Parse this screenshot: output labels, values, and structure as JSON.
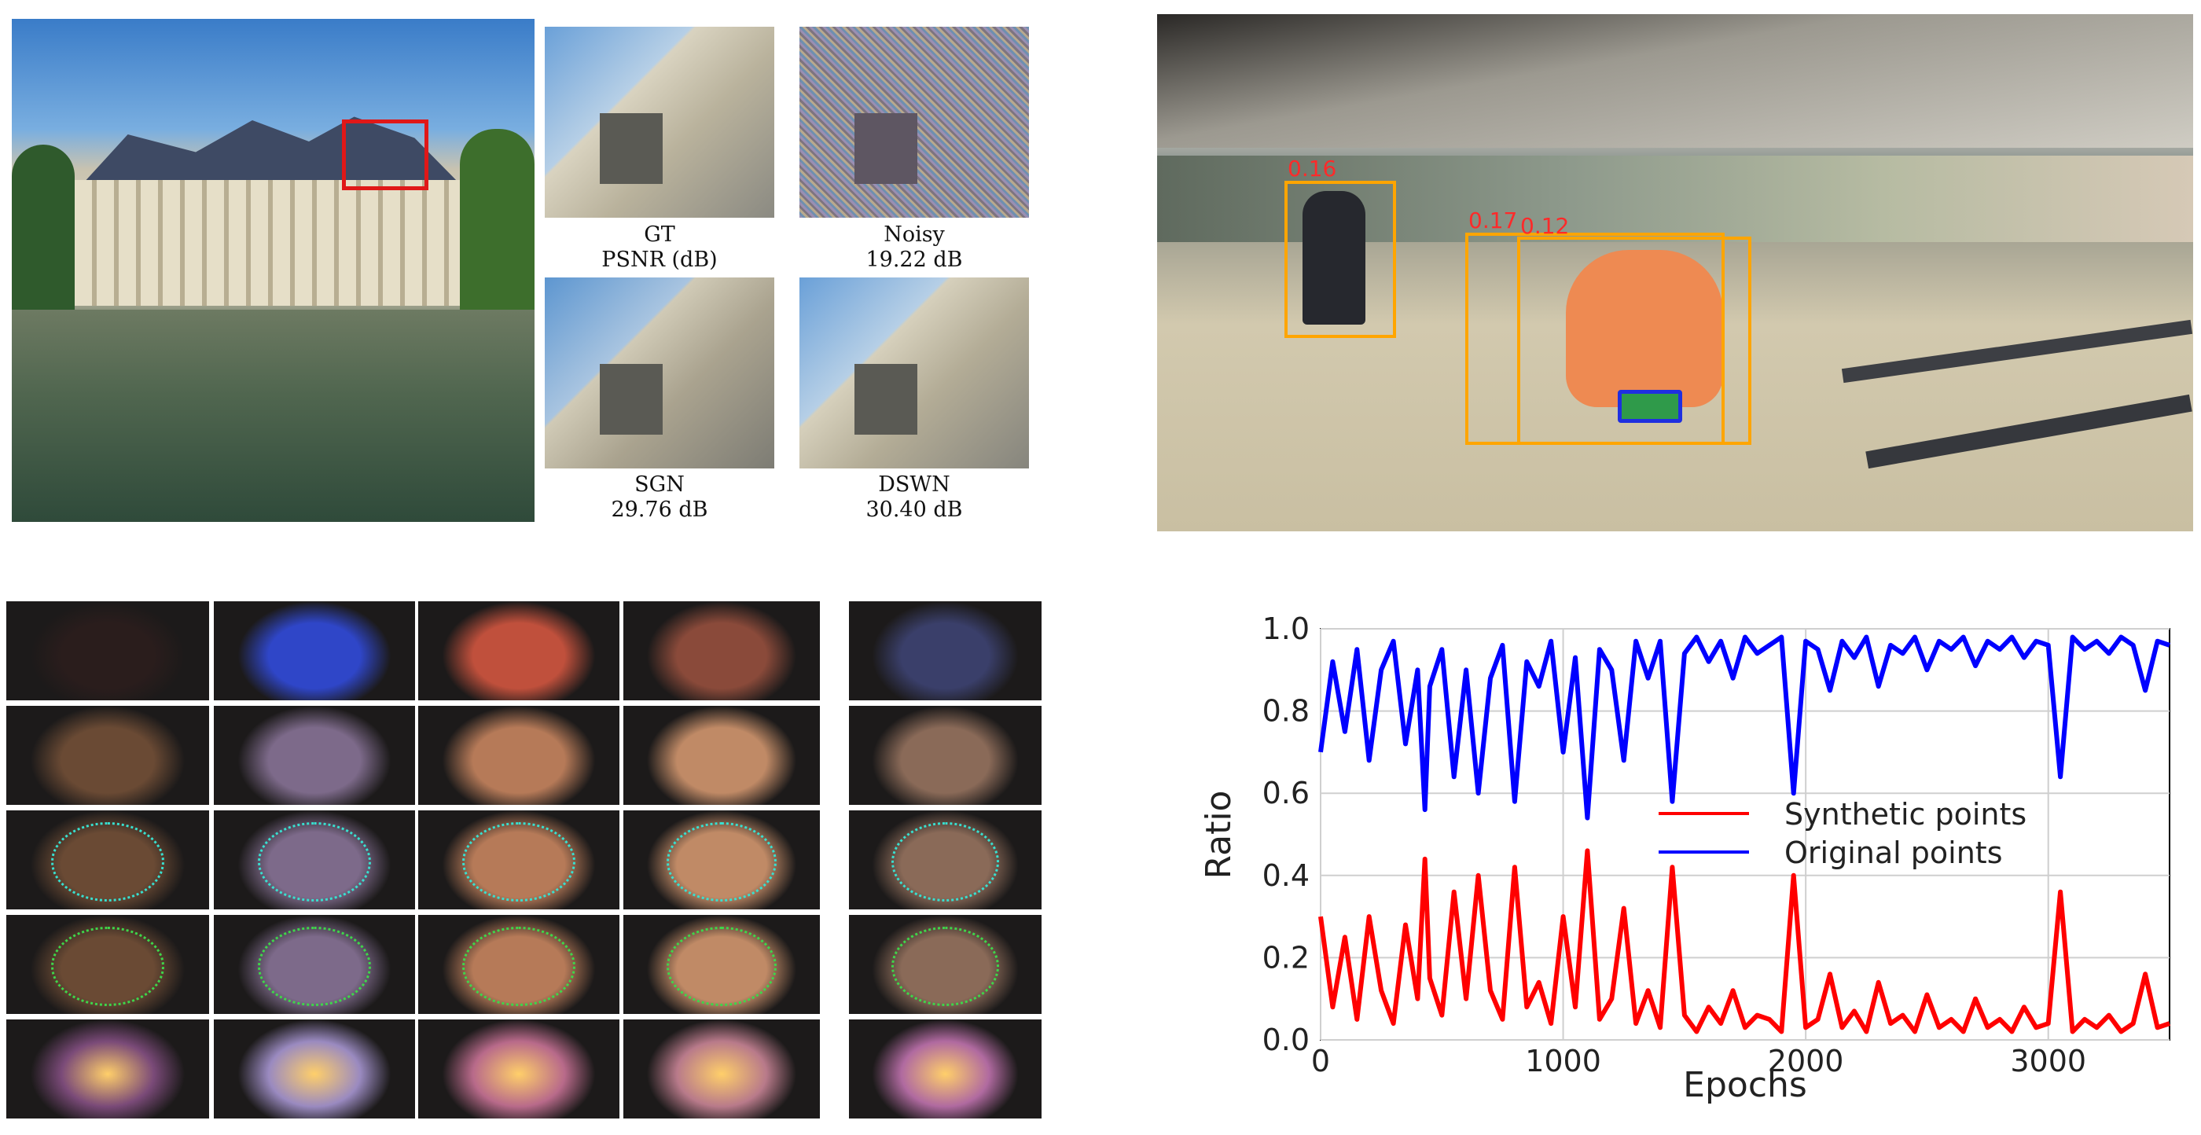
{
  "denoise_figure": {
    "captions": [
      {
        "line1": "GT",
        "line2": "PSNR (dB)"
      },
      {
        "line1": "Noisy",
        "line2": "19.22 dB"
      },
      {
        "line1": "SGN",
        "line2": "29.76 dB"
      },
      {
        "line1": "DSWN",
        "line2": "30.40 dB"
      }
    ]
  },
  "detection_figure": {
    "scores": [
      "0.16",
      "0.17",
      "0.12"
    ]
  },
  "faces_figure": {
    "rows": 5,
    "columns": 5,
    "row_types": [
      "input",
      "enhanced",
      "cyan-landmarks",
      "green-landmarks",
      "heatmap"
    ]
  },
  "chart_data": {
    "type": "line",
    "xlabel": "Epochs",
    "ylabel": "Ratio",
    "xlim": [
      0,
      3500
    ],
    "ylim": [
      0.0,
      1.0
    ],
    "xticks": [
      "0",
      "1000",
      "2000",
      "3000"
    ],
    "yticks": [
      "0.0",
      "0.2",
      "0.4",
      "0.6",
      "0.8",
      "1.0"
    ],
    "grid": true,
    "legend_placement": "center-right",
    "series": [
      {
        "name": "Synthetic points",
        "color": "#ff0000",
        "x": [
          0,
          50,
          100,
          150,
          200,
          250,
          300,
          350,
          400,
          430,
          450,
          500,
          550,
          600,
          650,
          700,
          750,
          800,
          850,
          900,
          950,
          1000,
          1050,
          1100,
          1150,
          1200,
          1250,
          1300,
          1350,
          1400,
          1450,
          1500,
          1550,
          1600,
          1650,
          1700,
          1750,
          1800,
          1850,
          1900,
          1950,
          2000,
          2050,
          2100,
          2150,
          2200,
          2250,
          2300,
          2350,
          2400,
          2450,
          2500,
          2550,
          2600,
          2650,
          2700,
          2750,
          2800,
          2850,
          2900,
          2950,
          3000,
          3050,
          3100,
          3150,
          3200,
          3250,
          3300,
          3350,
          3400,
          3450,
          3500
        ],
        "values": [
          0.3,
          0.08,
          0.25,
          0.05,
          0.3,
          0.12,
          0.04,
          0.28,
          0.1,
          0.44,
          0.15,
          0.06,
          0.36,
          0.1,
          0.4,
          0.12,
          0.05,
          0.42,
          0.08,
          0.14,
          0.04,
          0.3,
          0.08,
          0.46,
          0.05,
          0.1,
          0.32,
          0.04,
          0.12,
          0.03,
          0.42,
          0.06,
          0.02,
          0.08,
          0.04,
          0.12,
          0.03,
          0.06,
          0.05,
          0.02,
          0.4,
          0.03,
          0.05,
          0.16,
          0.03,
          0.07,
          0.02,
          0.14,
          0.04,
          0.06,
          0.02,
          0.11,
          0.03,
          0.05,
          0.02,
          0.1,
          0.03,
          0.05,
          0.02,
          0.08,
          0.03,
          0.04,
          0.36,
          0.02,
          0.05,
          0.03,
          0.06,
          0.02,
          0.04,
          0.16,
          0.03,
          0.04
        ]
      },
      {
        "name": "Original points",
        "color": "#0000ff",
        "x": [
          0,
          50,
          100,
          150,
          200,
          250,
          300,
          350,
          400,
          430,
          450,
          500,
          550,
          600,
          650,
          700,
          750,
          800,
          850,
          900,
          950,
          1000,
          1050,
          1100,
          1150,
          1200,
          1250,
          1300,
          1350,
          1400,
          1450,
          1500,
          1550,
          1600,
          1650,
          1700,
          1750,
          1800,
          1850,
          1900,
          1950,
          2000,
          2050,
          2100,
          2150,
          2200,
          2250,
          2300,
          2350,
          2400,
          2450,
          2500,
          2550,
          2600,
          2650,
          2700,
          2750,
          2800,
          2850,
          2900,
          2950,
          3000,
          3050,
          3100,
          3150,
          3200,
          3250,
          3300,
          3350,
          3400,
          3450,
          3500
        ],
        "values": [
          0.7,
          0.92,
          0.75,
          0.95,
          0.68,
          0.9,
          0.97,
          0.72,
          0.9,
          0.56,
          0.86,
          0.95,
          0.64,
          0.9,
          0.6,
          0.88,
          0.96,
          0.58,
          0.92,
          0.86,
          0.97,
          0.7,
          0.93,
          0.54,
          0.95,
          0.9,
          0.68,
          0.97,
          0.88,
          0.97,
          0.58,
          0.94,
          0.98,
          0.92,
          0.97,
          0.88,
          0.98,
          0.94,
          0.96,
          0.98,
          0.6,
          0.97,
          0.95,
          0.85,
          0.97,
          0.93,
          0.98,
          0.86,
          0.96,
          0.94,
          0.98,
          0.9,
          0.97,
          0.95,
          0.98,
          0.91,
          0.97,
          0.95,
          0.98,
          0.93,
          0.97,
          0.96,
          0.64,
          0.98,
          0.95,
          0.97,
          0.94,
          0.98,
          0.96,
          0.85,
          0.97,
          0.96
        ]
      }
    ]
  }
}
